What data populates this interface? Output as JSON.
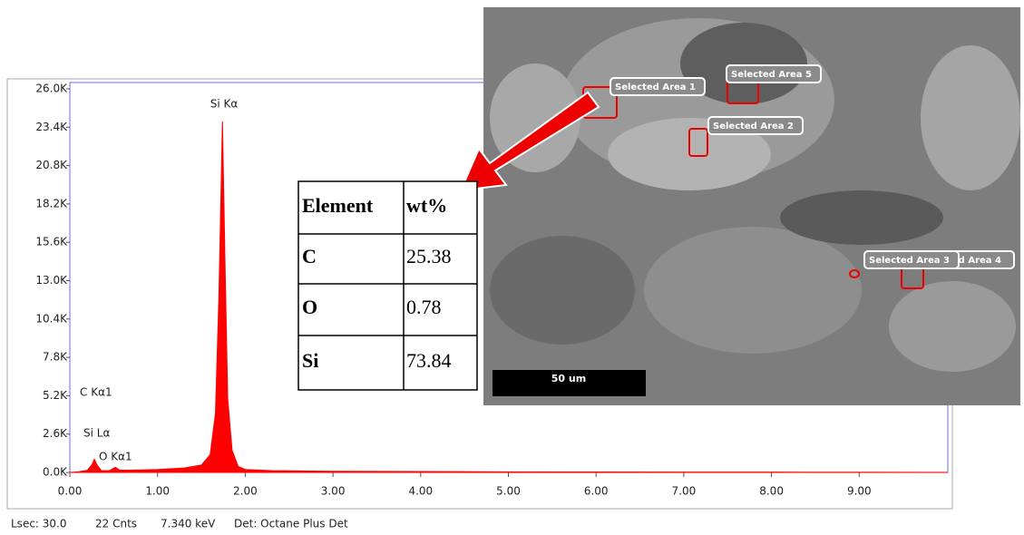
{
  "chart_data": {
    "type": "area",
    "color": "#ff0000",
    "x": [
      0.0,
      0.1,
      0.2,
      0.25,
      0.28,
      0.31,
      0.36,
      0.45,
      0.52,
      0.57,
      0.7,
      1.0,
      1.3,
      1.5,
      1.6,
      1.66,
      1.7,
      1.74,
      1.77,
      1.8,
      1.85,
      1.92,
      2.0,
      2.3,
      3.0,
      4.0,
      5.0,
      6.0,
      7.0,
      8.0,
      9.0,
      10.0
    ],
    "values": [
      0,
      50,
      150,
      500,
      900,
      500,
      120,
      120,
      350,
      150,
      150,
      200,
      300,
      500,
      1200,
      4000,
      12000,
      23800,
      14000,
      5000,
      1500,
      400,
      200,
      120,
      80,
      60,
      40,
      30,
      25,
      20,
      15,
      10
    ],
    "xlim": [
      0,
      10
    ],
    "ylim": [
      0,
      26000
    ],
    "xticks": [
      {
        "value": 0,
        "label": "0.00"
      },
      {
        "value": 1,
        "label": "1.00"
      },
      {
        "value": 2,
        "label": "2.00"
      },
      {
        "value": 3,
        "label": "3.00"
      },
      {
        "value": 4,
        "label": "4.00"
      },
      {
        "value": 5,
        "label": "5.00"
      },
      {
        "value": 6,
        "label": "6.00"
      },
      {
        "value": 7,
        "label": "7.00"
      },
      {
        "value": 8,
        "label": "8.00"
      },
      {
        "value": 9,
        "label": "9.00"
      }
    ],
    "yticks": [
      {
        "value": 0,
        "label": "0.0K"
      },
      {
        "value": 2600,
        "label": "2.6K"
      },
      {
        "value": 5200,
        "label": "5.2K"
      },
      {
        "value": 7800,
        "label": "7.8K"
      },
      {
        "value": 10400,
        "label": "10.4K"
      },
      {
        "value": 13000,
        "label": "13.0K"
      },
      {
        "value": 15600,
        "label": "15.6K"
      },
      {
        "value": 18200,
        "label": "18.2K"
      },
      {
        "value": 20800,
        "label": "20.8K"
      },
      {
        "value": 23400,
        "label": "23.4K"
      },
      {
        "value": 26000,
        "label": "26.0K"
      }
    ],
    "annotations": [
      "Si Kα",
      "C  Kα1",
      "Si Lα",
      "O  Kα1"
    ],
    "status_bar": [
      "Lsec: 30.0",
      "22 Cnts",
      "7.340 keV",
      "Det: Octane Plus Det"
    ]
  },
  "table": {
    "header": [
      "Element",
      "wt%"
    ],
    "rows": [
      [
        "C",
        "25.38"
      ],
      [
        "O",
        "0.78"
      ],
      [
        "Si",
        "73.84"
      ]
    ]
  },
  "sem_image": {
    "areas": [
      "Selected Area 1",
      "Selected Area 5",
      "Selected Area 2",
      "Selected Area 4",
      "Selected Area 3"
    ],
    "scale_bar": "50 um"
  }
}
